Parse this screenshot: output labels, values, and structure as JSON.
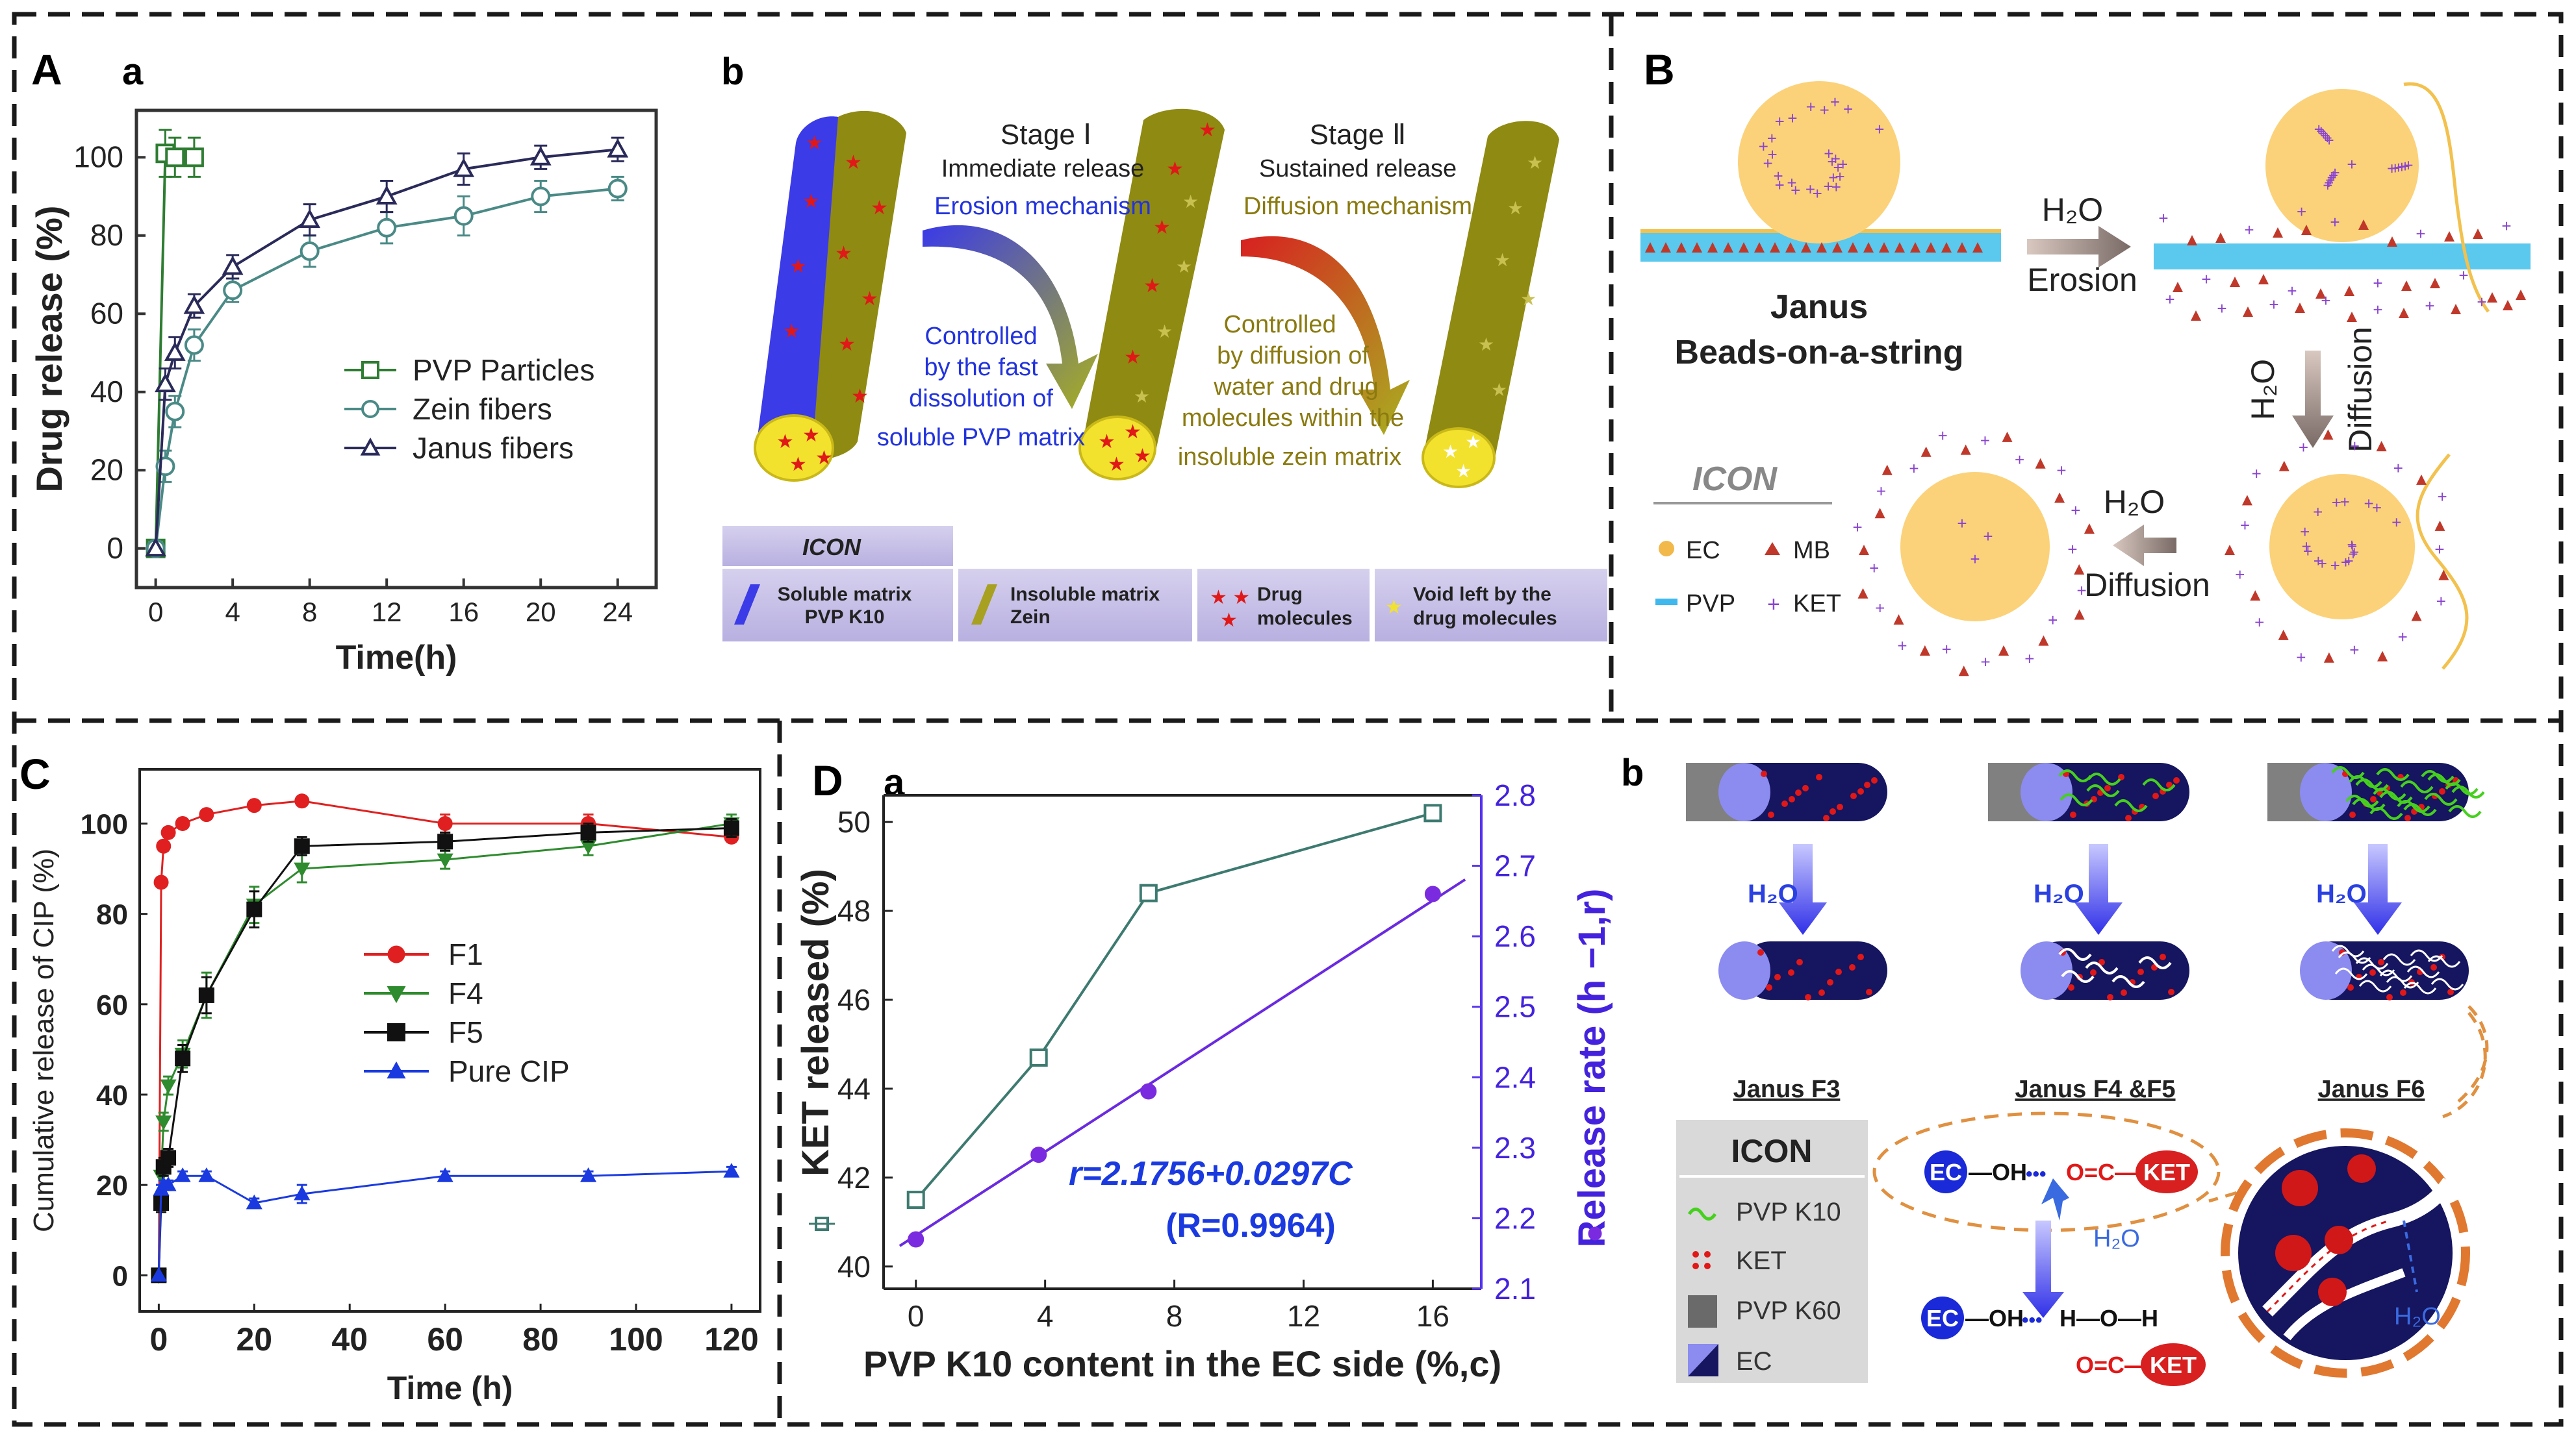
{
  "panels": {
    "A": "A",
    "B": "B",
    "C": "C",
    "D": "D"
  },
  "subpanels": {
    "Aa": "a",
    "Ab": "b",
    "Bb": "b",
    "Da": "a"
  },
  "chart_data": [
    {
      "id": "A-a",
      "type": "line",
      "title": "",
      "xlabel": "Time(h)",
      "ylabel": "Drug release (%)",
      "xlim": [
        -1,
        26
      ],
      "ylim": [
        -10,
        112
      ],
      "xticks": [
        "0",
        "4",
        "8",
        "12",
        "16",
        "20",
        "24"
      ],
      "yticks": [
        "0",
        "20",
        "40",
        "60",
        "80",
        "100"
      ],
      "xtickvals": [
        0,
        4,
        8,
        12,
        16,
        20,
        24
      ],
      "ytickvals": [
        0,
        20,
        40,
        60,
        80,
        100
      ],
      "series": [
        {
          "name": "PVP Particles",
          "color": "#2e7d32",
          "marker": "square",
          "x": [
            0,
            0.5,
            1,
            2
          ],
          "y": [
            0,
            101,
            100,
            100
          ],
          "err": [
            0,
            6,
            5,
            5
          ]
        },
        {
          "name": "Zein fibers",
          "color": "#4a8a86",
          "marker": "circle",
          "x": [
            0,
            0.5,
            1,
            2,
            4,
            8,
            12,
            16,
            20,
            24
          ],
          "y": [
            0,
            21,
            35,
            52,
            66,
            76,
            82,
            85,
            90,
            92
          ],
          "err": [
            0,
            4,
            4,
            4,
            3,
            4,
            4,
            5,
            4,
            3
          ]
        },
        {
          "name": "Janus fibers",
          "color": "#2a2a5a",
          "marker": "triangle",
          "x": [
            0,
            0.5,
            1,
            2,
            4,
            8,
            12,
            16,
            20,
            24
          ],
          "y": [
            0,
            42,
            50,
            62,
            72,
            84,
            90,
            97,
            100,
            102
          ],
          "err": [
            0,
            4,
            4,
            3,
            3,
            4,
            4,
            4,
            3,
            3
          ]
        }
      ]
    },
    {
      "id": "C",
      "type": "line",
      "title": "",
      "xlabel": "Time (h)",
      "ylabel": "Cumulative  release  of CIP  (%)",
      "xlim": [
        -4,
        126
      ],
      "ylim": [
        -8,
        112
      ],
      "xticks": [
        "0",
        "20",
        "40",
        "60",
        "80",
        "100",
        "120"
      ],
      "yticks": [
        "0",
        "20",
        "40",
        "60",
        "80",
        "100"
      ],
      "xtickvals": [
        0,
        20,
        40,
        60,
        80,
        100,
        120
      ],
      "ytickvals": [
        0,
        20,
        40,
        60,
        80,
        100
      ],
      "series": [
        {
          "name": "F1",
          "color": "#e02020",
          "marker": "circle",
          "x": [
            0,
            0.5,
            1,
            2,
            5,
            10,
            20,
            30,
            60,
            90,
            120
          ],
          "y": [
            0,
            87,
            95,
            98,
            100,
            102,
            104,
            105,
            100,
            100,
            97
          ],
          "err": [
            0,
            1,
            1,
            1,
            1,
            1,
            1,
            1,
            2,
            2,
            1
          ]
        },
        {
          "name": "F4",
          "color": "#2e8b2e",
          "marker": "triangle-down",
          "x": [
            0,
            0.5,
            1,
            2,
            5,
            10,
            20,
            30,
            60,
            90,
            120
          ],
          "y": [
            0,
            22,
            34,
            42,
            49,
            62,
            82,
            90,
            92,
            95,
            100
          ],
          "err": [
            0,
            2,
            2,
            2,
            3,
            5,
            4,
            3,
            2,
            2,
            2
          ]
        },
        {
          "name": "F5",
          "color": "#111111",
          "marker": "square",
          "x": [
            0,
            0.5,
            1,
            2,
            5,
            10,
            20,
            30,
            60,
            90,
            120
          ],
          "y": [
            0,
            16,
            24,
            26,
            48,
            62,
            81,
            95,
            96,
            98,
            99
          ],
          "err": [
            0,
            2,
            2,
            2,
            3,
            4,
            4,
            2,
            2,
            2,
            2
          ]
        },
        {
          "name": "Pure CIP",
          "color": "#1a3ae0",
          "marker": "triangle",
          "x": [
            0,
            0.5,
            1,
            2,
            5,
            10,
            20,
            30,
            60,
            90,
            120
          ],
          "y": [
            0,
            19,
            20,
            20,
            22,
            22,
            16,
            18,
            22,
            22,
            23
          ],
          "err": [
            0,
            1,
            1,
            1,
            1,
            1,
            1,
            2,
            1,
            1,
            1
          ]
        }
      ]
    },
    {
      "id": "D-a",
      "type": "line",
      "title": "",
      "xlabel": "PVP K10 content in the EC side (%,c)",
      "ylabel": "KET released (%)",
      "y2label": "Release rate (h −1,r)",
      "xlim": [
        -1,
        17.5
      ],
      "ylim": [
        39.5,
        50.6
      ],
      "y2lim": [
        2.1,
        2.8
      ],
      "xticks": [
        "0",
        "4",
        "8",
        "12",
        "16"
      ],
      "xtickvals": [
        0,
        4,
        8,
        12,
        16
      ],
      "yticks": [
        "40",
        "42",
        "44",
        "46",
        "48",
        "50"
      ],
      "ytickvals": [
        40,
        42,
        44,
        46,
        48,
        50
      ],
      "y2ticks": [
        "2.1",
        "2.2",
        "2.3",
        "2.4",
        "2.5",
        "2.6",
        "2.7",
        "2.8"
      ],
      "y2tickvals": [
        2.1,
        2.2,
        2.3,
        2.4,
        2.5,
        2.6,
        2.7,
        2.8
      ],
      "series": [
        {
          "name": "KET released",
          "axis": "left",
          "color": "#3d7a70",
          "marker": "square-open",
          "x": [
            0,
            3.8,
            7.2,
            16
          ],
          "y": [
            41.5,
            44.7,
            48.4,
            50.2
          ]
        },
        {
          "name": "Release rate",
          "axis": "right",
          "color": "#7a2be0",
          "marker": "circle",
          "x": [
            0,
            3.8,
            7.2,
            16
          ],
          "y": [
            2.17,
            2.29,
            2.38,
            2.66
          ]
        }
      ],
      "fit": {
        "label": "r=2.1756+0.0297C",
        "r2": "(R=0.9964)",
        "intercept": 2.1756,
        "slope": 0.0297
      }
    }
  ],
  "panelA_b": {
    "stage1": "Stage Ⅰ",
    "stage1_sub": "Immediate release",
    "stage1_mech": "Erosion mechanism",
    "stage2": "Stage Ⅱ",
    "stage2_sub": "Sustained release",
    "stage2_mech": "Diffusion mechanism",
    "ctrl1": [
      "Controlled",
      "by the fast",
      "dissolution of",
      "soluble PVP matrix"
    ],
    "ctrl2": [
      "Controlled",
      "by diffusion of",
      "water and drug",
      "molecules within the",
      "insoluble zein matrix"
    ],
    "icon_title": "ICON",
    "icons": [
      {
        "l1": "Soluble matrix",
        "l2": "PVP K10"
      },
      {
        "l1": "Insoluble matrix",
        "l2": "Zein"
      },
      {
        "l1": "Drug",
        "l2": "molecules"
      },
      {
        "l1": "Void left by the",
        "l2": "drug molecules"
      }
    ]
  },
  "panelB": {
    "janus1": "Janus",
    "janus2": "Beads-on-a-string",
    "h2o": "H₂O",
    "erosion": "Erosion",
    "diffusion": "Diffusion",
    "icon_title": "ICON",
    "legend": [
      "EC",
      "MB",
      "PVP",
      "KET"
    ]
  },
  "panelD_b": {
    "h2o": "H₂O",
    "labels": [
      "Janus F3",
      "Janus F4 &F5",
      "Janus F6"
    ],
    "icon_title": "ICON",
    "legend": [
      "PVP K10",
      "KET",
      "PVP K60",
      "EC"
    ],
    "bond1": {
      "ec": "EC",
      "a": "—OH",
      "dots": "•••",
      "b": "O=C—",
      "ket": "KET"
    },
    "bond2": {
      "ec": "EC",
      "a": "—OH",
      "dots": "•••",
      "b": "H—O—H",
      "c": "O=C—",
      "ket": "KET"
    }
  },
  "colors": {
    "pvp_blue": "#3b3be8",
    "zein_olive": "#8f8a12",
    "bead_yellow": "#fbd27a",
    "ec_navy": "#151560",
    "ket_red": "#e01818"
  }
}
